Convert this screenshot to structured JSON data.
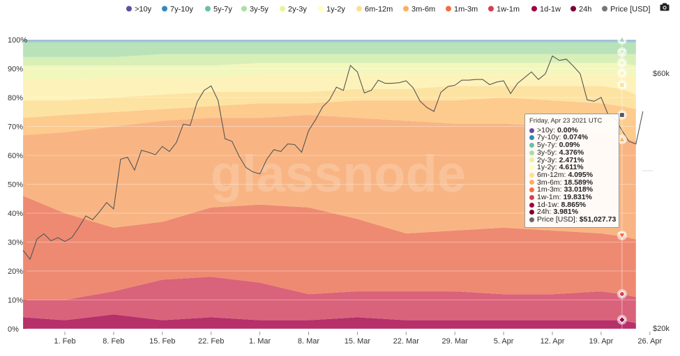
{
  "chart_data": {
    "type": "area",
    "stacked": true,
    "normalized_percent": true,
    "watermark": "glassnode",
    "x_tick_labels": [
      "1. Feb",
      "8. Feb",
      "15. Feb",
      "22. Feb",
      "1. Mar",
      "8. Mar",
      "15. Mar",
      "22. Mar",
      "29. Mar",
      "5. Apr",
      "12. Apr",
      "19. Apr",
      "26. Apr"
    ],
    "y_left_tick_labels": [
      "0%",
      "10%",
      "20%",
      "30%",
      "40%",
      "50%",
      "60%",
      "70%",
      "80%",
      "90%",
      "100%"
    ],
    "y_left_range": [
      0,
      100
    ],
    "y_right_tick_labels": [
      "$20k",
      "$60k"
    ],
    "y_right_range_usd": [
      20000,
      66000
    ],
    "x_days_labels_start": "2021-01-26",
    "grid": true,
    "legend_position": "top",
    "legend": [
      {
        "name": ">10y",
        "color": "#5e4fa2"
      },
      {
        "name": "7y-10y",
        "color": "#3288bd"
      },
      {
        "name": "5y-7y",
        "color": "#66c2a5"
      },
      {
        "name": "3y-5y",
        "color": "#abdda4"
      },
      {
        "name": "2y-3y",
        "color": "#e6f598"
      },
      {
        "name": "1y-2y",
        "color": "#ffffbf"
      },
      {
        "name": "6m-12m",
        "color": "#fee08b"
      },
      {
        "name": "3m-6m",
        "color": "#fdae61"
      },
      {
        "name": "1m-3m",
        "color": "#f46d43"
      },
      {
        "name": "1w-1m",
        "color": "#d53e4f"
      },
      {
        "name": "1d-1w",
        "color": "#9e0142"
      },
      {
        "name": "24h",
        "color": "#7a0134"
      },
      {
        "name": "Price [USD]",
        "color": "#777777"
      }
    ],
    "band_keys": [
      "24h",
      "1d-1w",
      "1w-1m",
      "1m-3m",
      "3m-6m",
      "6m-12m",
      "1y-2y",
      "2y-3y",
      "3y-5y",
      "5y-7y",
      "7y-10y",
      ">10y"
    ],
    "band_colors": [
      "#b6306a",
      "#d9637a",
      "#ee8a72",
      "#f8b583",
      "#fdcb8d",
      "#fde3a2",
      "#fdf3ba",
      "#f2f7bc",
      "#d8efb8",
      "#b9e2b9",
      "#9fd4c0",
      "#8fb3d6"
    ],
    "day": [
      -6,
      0,
      7,
      14,
      21,
      28,
      35,
      42,
      49,
      56,
      63,
      70,
      77,
      80,
      82
    ],
    "band_boundaries_percent": {
      "b1": [
        4,
        3,
        5,
        3,
        4,
        3,
        3,
        4,
        3,
        3,
        3,
        3,
        3,
        3,
        2
      ],
      "b2": [
        10,
        10,
        13,
        17,
        18,
        16,
        12,
        13,
        13,
        13,
        12,
        12,
        13,
        12,
        11
      ],
      "b3": [
        46,
        40,
        35,
        37,
        42,
        43,
        42,
        38,
        33,
        34,
        35,
        34,
        33,
        32,
        31
      ],
      "b4": [
        67,
        68,
        70,
        72,
        73,
        73,
        74,
        73,
        72,
        71,
        71,
        70,
        68,
        66,
        65
      ],
      "b5": [
        73,
        74,
        75,
        76,
        77,
        78,
        78,
        79,
        79,
        79,
        80,
        79,
        78,
        77,
        76
      ],
      "b6": [
        79,
        79,
        80,
        81,
        82,
        82,
        82,
        83,
        83,
        84,
        84,
        84,
        84,
        83,
        81
      ],
      "b7": [
        86,
        86,
        87,
        87,
        87,
        88,
        88,
        88,
        88,
        88,
        88,
        88,
        88,
        88,
        87
      ],
      "b8": [
        91,
        91,
        91,
        91,
        91,
        92,
        92,
        92,
        92,
        92,
        92,
        92,
        92,
        92,
        91
      ],
      "b9": [
        94,
        94,
        94,
        95,
        95,
        95,
        95,
        95,
        95,
        95,
        95,
        95,
        95,
        95,
        95
      ],
      "b10": [
        99,
        99,
        99,
        99,
        99,
        99,
        99,
        99,
        99,
        99,
        99,
        99,
        99,
        99,
        99
      ],
      "b11": [
        99.6,
        99.6,
        99.6,
        99.6,
        99.6,
        99.6,
        99.6,
        99.6,
        99.6,
        99.6,
        99.6,
        99.6,
        99.6,
        99.6,
        99.6
      ],
      "b12": [
        100,
        100,
        100,
        100,
        100,
        100,
        100,
        100,
        100,
        100,
        100,
        100,
        100,
        100,
        100
      ]
    },
    "price_series": {
      "name": "Price [USD]",
      "color": "#555555",
      "day": [
        -6,
        -5,
        -4,
        -3,
        -2,
        -1,
        0,
        1,
        2,
        3,
        4,
        5,
        6,
        7,
        8,
        9,
        10,
        11,
        12,
        13,
        14,
        15,
        16,
        17,
        18,
        19,
        20,
        21,
        22,
        23,
        24,
        25,
        26,
        27,
        28,
        29,
        30,
        31,
        32,
        33,
        34,
        35,
        36,
        37,
        38,
        39,
        40,
        41,
        42,
        43,
        44,
        45,
        46,
        47,
        48,
        49,
        50,
        51,
        52,
        53,
        54,
        55,
        56,
        57,
        58,
        59,
        60,
        61,
        62,
        63,
        64,
        65,
        66,
        67,
        68,
        69,
        70,
        71,
        72,
        73,
        74,
        75,
        76,
        77,
        78,
        79,
        80,
        81,
        82,
        83
      ],
      "usd": [
        32200,
        30800,
        34000,
        34800,
        33700,
        34200,
        33600,
        34200,
        35800,
        37600,
        37000,
        38300,
        39700,
        38700,
        46500,
        46800,
        44800,
        47900,
        47600,
        47200,
        48500,
        47700,
        49100,
        52000,
        51800,
        55500,
        57300,
        58000,
        55700,
        49700,
        49300,
        47000,
        45200,
        44500,
        44200,
        46500,
        48000,
        47700,
        48900,
        48800,
        47600,
        51000,
        52700,
        54700,
        55800,
        57800,
        57300,
        61200,
        60200,
        56900,
        57300,
        58900,
        58400,
        58400,
        58500,
        58800,
        57700,
        55600,
        54600,
        54000,
        57000,
        57900,
        58100,
        58900,
        58900,
        59000,
        59000,
        58200,
        58600,
        58800,
        56800,
        58400,
        59300,
        60200,
        59000,
        59900,
        62700,
        62000,
        62200,
        61100,
        59900,
        55800,
        55600,
        56200,
        53500,
        52900,
        51000,
        49300,
        48900,
        54000
      ]
    },
    "tooltip": {
      "date": "Friday, Apr 23 2021 UTC",
      "rows": [
        {
          "label": ">10y",
          "value": "0.00%",
          "color": "#5e4fa2"
        },
        {
          "label": "7y-10y",
          "value": "0.074%",
          "color": "#3288bd"
        },
        {
          "label": "5y-7y",
          "value": "0.09%",
          "color": "#66c2a5"
        },
        {
          "label": "3y-5y",
          "value": "4.376%",
          "color": "#abdda4"
        },
        {
          "label": "2y-3y",
          "value": "2.471%",
          "color": "#e6f598"
        },
        {
          "label": "1y-2y",
          "value": "4.611%",
          "color": "#ffffbf"
        },
        {
          "label": "6m-12m",
          "value": "4.095%",
          "color": "#fee08b"
        },
        {
          "label": "3m-6m",
          "value": "18.589%",
          "color": "#fdae61"
        },
        {
          "label": "1m-3m",
          "value": "33.018%",
          "color": "#f46d43"
        },
        {
          "label": "1w-1m",
          "value": "19.831%",
          "color": "#d53e4f"
        },
        {
          "label": "1d-1w",
          "value": "8.865%",
          "color": "#9e0142"
        },
        {
          "label": "24h",
          "value": "3.981%",
          "color": "#7a0134"
        },
        {
          "label": "Price [USD]",
          "value": "$51,027.73",
          "color": "#666666"
        }
      ]
    }
  }
}
